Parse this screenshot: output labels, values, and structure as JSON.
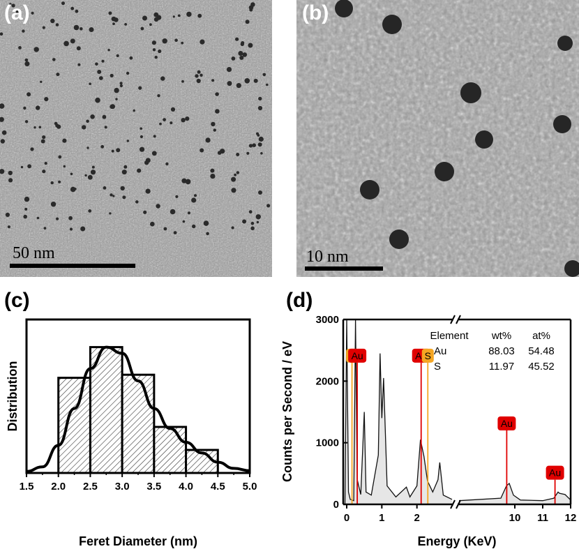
{
  "panels": {
    "a": {
      "label": "(a)",
      "scale_text": "50 nm"
    },
    "b": {
      "label": "(b)",
      "scale_text": "10 nm"
    },
    "c": {
      "label": "(c)"
    },
    "d": {
      "label": "(d)"
    }
  },
  "chart_data": [
    {
      "type": "bar",
      "xlabel": "Feret Diameter (nm)",
      "ylabel": "Distribution",
      "xlim": [
        1.5,
        5.0
      ],
      "x_ticks": [
        "1.5",
        "2.0",
        "2.5",
        "3.0",
        "3.5",
        "4.0",
        "4.5",
        "5.0"
      ],
      "bins": [
        {
          "from": 2.0,
          "to": 2.5,
          "value": 0.62
        },
        {
          "from": 2.5,
          "to": 3.0,
          "value": 0.82
        },
        {
          "from": 3.0,
          "to": 3.5,
          "value": 0.64
        },
        {
          "from": 3.5,
          "to": 4.0,
          "value": 0.3
        },
        {
          "from": 4.0,
          "to": 4.5,
          "value": 0.15
        }
      ],
      "fit_curve": [
        [
          1.5,
          0.01
        ],
        [
          1.75,
          0.04
        ],
        [
          2.0,
          0.18
        ],
        [
          2.25,
          0.42
        ],
        [
          2.5,
          0.68
        ],
        [
          2.75,
          0.82
        ],
        [
          3.0,
          0.78
        ],
        [
          3.25,
          0.6
        ],
        [
          3.5,
          0.42
        ],
        [
          3.75,
          0.29
        ],
        [
          4.0,
          0.2
        ],
        [
          4.25,
          0.13
        ],
        [
          4.5,
          0.07
        ],
        [
          4.75,
          0.03
        ],
        [
          5.0,
          0.015
        ]
      ],
      "ylim": [
        0,
        1
      ]
    },
    {
      "type": "line",
      "xlabel": "Energy (KeV)",
      "ylabel": "Counts per Second / eV",
      "ylim": [
        0,
        3000
      ],
      "y_ticks": [
        "0",
        "1000",
        "2000",
        "3000"
      ],
      "x_ticks": [
        "0",
        "1",
        "2",
        "10",
        "11",
        "12"
      ],
      "spectrum": [
        [
          -0.05,
          0
        ],
        [
          0.0,
          3000
        ],
        [
          0.05,
          200
        ],
        [
          0.1,
          80
        ],
        [
          0.2,
          60
        ],
        [
          0.25,
          3000
        ],
        [
          0.3,
          400
        ],
        [
          0.4,
          160
        ],
        [
          0.5,
          1500
        ],
        [
          0.55,
          200
        ],
        [
          0.7,
          150
        ],
        [
          0.9,
          800
        ],
        [
          0.95,
          2450
        ],
        [
          1.0,
          1400
        ],
        [
          1.05,
          2050
        ],
        [
          1.15,
          300
        ],
        [
          1.4,
          120
        ],
        [
          1.7,
          280
        ],
        [
          1.8,
          120
        ],
        [
          2.0,
          300
        ],
        [
          2.1,
          1050
        ],
        [
          2.2,
          780
        ],
        [
          2.3,
          380
        ],
        [
          2.45,
          200
        ],
        [
          2.6,
          400
        ],
        [
          2.65,
          680
        ],
        [
          2.75,
          150
        ],
        [
          3.0,
          80
        ]
      ],
      "spectrum_break": [
        [
          8.0,
          60
        ],
        [
          9.5,
          100
        ],
        [
          9.7,
          300
        ],
        [
          9.8,
          340
        ],
        [
          9.95,
          150
        ],
        [
          10.2,
          70
        ],
        [
          11.0,
          60
        ],
        [
          11.4,
          100
        ],
        [
          11.55,
          200
        ],
        [
          11.6,
          180
        ],
        [
          11.8,
          160
        ],
        [
          12.0,
          70
        ]
      ],
      "peak_markers": [
        {
          "element": "S",
          "energy": 0.15,
          "height": 2300,
          "color": "#f5a623"
        },
        {
          "element": "Au",
          "energy": 0.3,
          "height": 2300,
          "color": "#e00000"
        },
        {
          "element": "Au",
          "energy": 2.12,
          "height": 2300,
          "color": "#e00000"
        },
        {
          "element": "S",
          "energy": 2.31,
          "height": 2300,
          "color": "#f5a623"
        },
        {
          "element": "Au",
          "energy": 9.71,
          "height": 1200,
          "color": "#e00000"
        },
        {
          "element": "Au",
          "energy": 11.44,
          "height": 400,
          "color": "#e00000"
        }
      ],
      "composition_table": {
        "headers": [
          "Element",
          "wt%",
          "at%"
        ],
        "rows": [
          [
            "Au",
            "88.03",
            "54.48"
          ],
          [
            "S",
            "11.97",
            "45.52"
          ]
        ]
      }
    }
  ]
}
